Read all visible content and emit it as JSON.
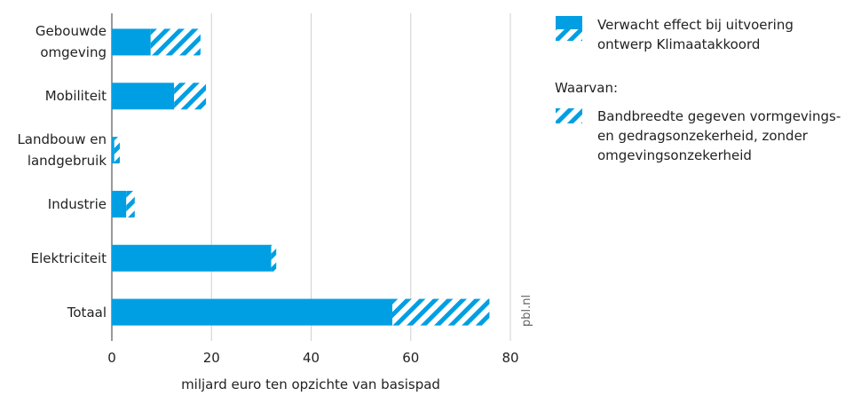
{
  "chart_data": {
    "type": "bar",
    "stacked": true,
    "orientation": "horizontal",
    "categories": [
      "Gebouwde\nomgeving",
      "Mobiliteit",
      "Landbouw en\nlandgebruik",
      "Industrie",
      "Elektriciteit",
      "Totaal"
    ],
    "series": [
      {
        "name": "Verwacht effect bij uitvoering\nontwerp Klimaatakkoord",
        "color": "#009fe3",
        "values": [
          7.8,
          12.5,
          0.5,
          2.9,
          32,
          56.3
        ]
      },
      {
        "name": "Bandbreedte gegeven vormgevings-\nen gedragsonzekerheid, zonder\nomgevingsonzekerheid",
        "color": "#009fe3",
        "hatched": true,
        "values": [
          10,
          6.4,
          1.1,
          1.7,
          1,
          19.5
        ]
      }
    ],
    "legend_heading": "Waarvan:",
    "source": "pbl.nl",
    "xlabel": "miljard euro ten opzichte van basispad",
    "xlim": [
      0,
      80
    ],
    "xticks": [
      0,
      20,
      40,
      60,
      80
    ],
    "grid": true
  }
}
